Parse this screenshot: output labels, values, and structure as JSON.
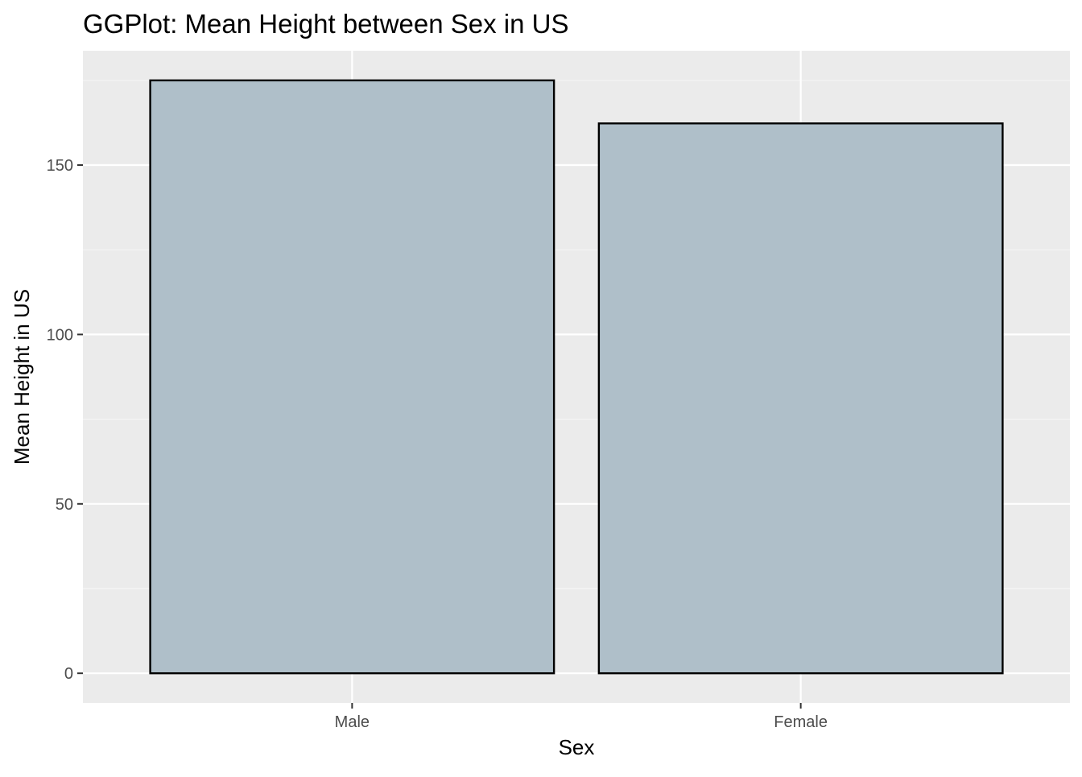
{
  "chart_data": {
    "type": "bar",
    "title": "GGPlot: Mean Height between Sex in US",
    "xlabel": "Sex",
    "ylabel": "Mean Height in US",
    "categories": [
      "Male",
      "Female"
    ],
    "values": [
      175.0,
      162.3
    ],
    "ylim": [
      -8.75,
      183.75
    ],
    "yticks": [
      0,
      50,
      100,
      150
    ],
    "yticklabels": [
      "0",
      "50",
      "100",
      "150"
    ],
    "grid": true,
    "legend": "none",
    "colors": {
      "panel_background": "#ebebeb",
      "grid_major": "#ffffff",
      "grid_minor": "#f5f5f5",
      "bar_fill": "#afbfc9",
      "bar_outline": "#000000",
      "tick_text": "#4d4d4d",
      "axis_tick": "#333333"
    }
  }
}
